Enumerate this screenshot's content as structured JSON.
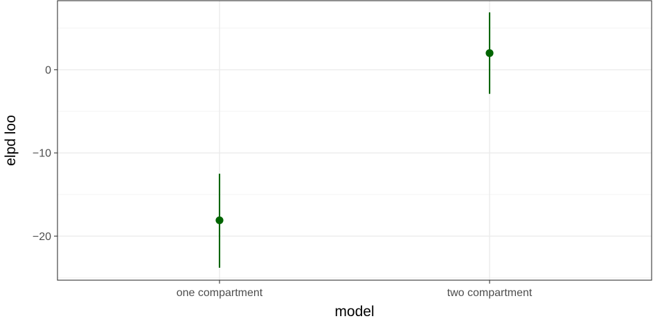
{
  "chart_data": {
    "type": "scatter",
    "title": "",
    "xlabel": "model",
    "ylabel": "elpd loo",
    "categories": [
      "one compartment",
      "two compartment"
    ],
    "points": [
      {
        "category": "one compartment",
        "estimate": -18.1,
        "lower": -23.8,
        "upper": -12.5
      },
      {
        "category": "two compartment",
        "estimate": 2.0,
        "lower": -2.9,
        "upper": 6.9
      }
    ],
    "yticks": [
      0,
      -10,
      -20
    ],
    "ytick_labels": [
      "0",
      "−10",
      "−20"
    ],
    "ylim": [
      -25.3,
      8.3
    ],
    "grid": true,
    "legend": "none",
    "colors": {
      "point": "#006400",
      "interval": "#006400",
      "panel_border": "#333333",
      "grid": "#ebebeb"
    }
  }
}
